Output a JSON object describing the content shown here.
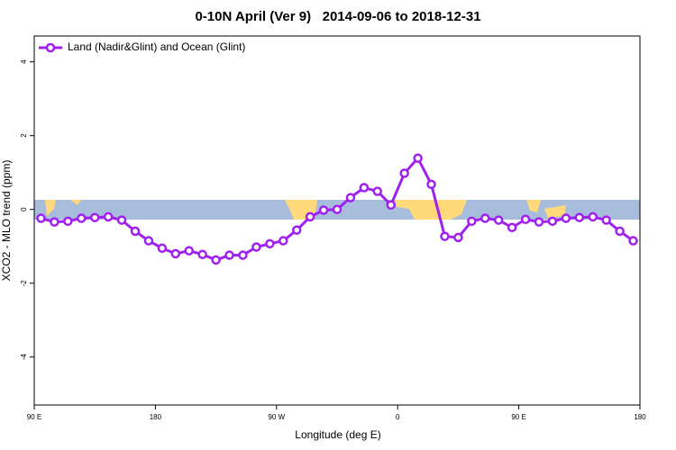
{
  "chart_data": {
    "type": "line",
    "title": "0-10N April (Ver 9)   2014-09-06 to 2018-12-31",
    "xlabel": "Longitude (deg E)",
    "ylabel": "XCO2 - MLO trend (ppm)",
    "xlim": [
      90,
      540
    ],
    "ylim": [
      -5.3,
      4.7
    ],
    "xticks": [
      {
        "value": 90,
        "label": "90 E"
      },
      {
        "value": 180,
        "label": "180"
      },
      {
        "value": 270,
        "label": "90 W"
      },
      {
        "value": 360,
        "label": "0"
      },
      {
        "value": 450,
        "label": "90 E"
      },
      {
        "value": 540,
        "label": "180"
      }
    ],
    "yticks": [
      -4,
      -2,
      0,
      2,
      4
    ],
    "legend": "top-left",
    "x": [
      95,
      105,
      115,
      125,
      135,
      145,
      155,
      165,
      175,
      185,
      195,
      205,
      215,
      225,
      235,
      245,
      255,
      265,
      275,
      285,
      295,
      305,
      315,
      325,
      335,
      345,
      355,
      365,
      375,
      385,
      395,
      405,
      415,
      425,
      435,
      445,
      455,
      465,
      475,
      485,
      495,
      505,
      515,
      525,
      535
    ],
    "series": [
      {
        "name": "Land (Nadir&Glint) and Ocean (Glint)",
        "color": "#a020f0",
        "values": [
          -0.24,
          -0.34,
          -0.32,
          -0.24,
          -0.22,
          -0.2,
          -0.29,
          -0.59,
          -0.85,
          -1.05,
          -1.2,
          -1.12,
          -1.22,
          -1.37,
          -1.24,
          -1.24,
          -1.02,
          -0.93,
          -0.85,
          -0.56,
          -0.2,
          -0.02,
          0,
          0.32,
          0.59,
          0.49,
          0.12,
          0.98,
          1.39,
          0.68,
          -0.73,
          -0.76,
          -0.32,
          -0.24,
          -0.29,
          -0.49,
          -0.27,
          -0.34,
          -0.32,
          -0.24,
          -0.22,
          -0.2,
          -0.29,
          -0.59,
          -0.85
        ]
      }
    ]
  }
}
